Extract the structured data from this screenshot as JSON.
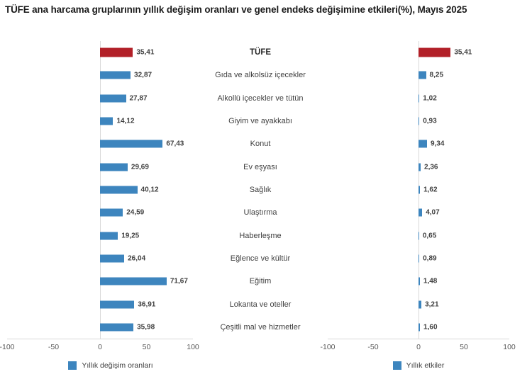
{
  "colors": {
    "bar_blue": "#3d85be",
    "bar_red": "#b22028",
    "axis_line": "#d9d9d9"
  },
  "axis_ticks": [
    "-100",
    "-50",
    "0",
    "50",
    "100"
  ],
  "chart_data": {
    "type": "bar",
    "orientation": "horizontal",
    "title": "TÜFE ana harcama gruplarının yıllık değişim oranları ve genel endeks değişimine etkileri(%), Mayıs 2025",
    "categories": [
      "TÜFE",
      "Gıda ve alkolsüz içecekler",
      "Alkollü içecekler ve tütün",
      "Giyim ve ayakkabı",
      "Konut",
      "Ev eşyası",
      "Sağlık",
      "Ulaştırma",
      "Haberleşme",
      "Eğlence ve kültür",
      "Eğitim",
      "Lokanta ve oteller",
      "Çeşitli mal ve hizmetler"
    ],
    "series": [
      {
        "name": "Yıllık değişim oranları",
        "values": [
          35.41,
          32.87,
          27.87,
          14.12,
          67.43,
          29.69,
          40.12,
          24.59,
          19.25,
          26.04,
          71.67,
          36.91,
          35.98
        ]
      },
      {
        "name": "Yıllık etkiler",
        "values": [
          35.41,
          8.25,
          1.02,
          0.93,
          9.34,
          2.36,
          1.62,
          4.07,
          0.65,
          0.89,
          1.48,
          3.21,
          1.6
        ]
      }
    ],
    "xlim": [
      -100,
      100
    ],
    "xticks": [
      -100,
      -50,
      0,
      50,
      100
    ],
    "grid": false,
    "legend_position": "bottom",
    "highlight": "TÜFE row shown in red in both panels"
  },
  "rows": [
    {
      "label": "TÜFE",
      "rate_label": "35,41",
      "effect_label": "35,41",
      "total": true
    },
    {
      "label": "Gıda ve alkolsüz içecekler",
      "rate_label": "32,87",
      "effect_label": "8,25"
    },
    {
      "label": "Alkollü içecekler ve tütün",
      "rate_label": "27,87",
      "effect_label": "1,02"
    },
    {
      "label": "Giyim ve ayakkabı",
      "rate_label": "14,12",
      "effect_label": "0,93"
    },
    {
      "label": "Konut",
      "rate_label": "67,43",
      "effect_label": "9,34"
    },
    {
      "label": "Ev eşyası",
      "rate_label": "29,69",
      "effect_label": "2,36"
    },
    {
      "label": "Sağlık",
      "rate_label": "40,12",
      "effect_label": "1,62"
    },
    {
      "label": "Ulaştırma",
      "rate_label": "24,59",
      "effect_label": "4,07"
    },
    {
      "label": "Haberleşme",
      "rate_label": "19,25",
      "effect_label": "0,65"
    },
    {
      "label": "Eğlence ve kültür",
      "rate_label": "26,04",
      "effect_label": "0,89"
    },
    {
      "label": "Eğitim",
      "rate_label": "71,67",
      "effect_label": "1,48"
    },
    {
      "label": "Lokanta ve oteller",
      "rate_label": "36,91",
      "effect_label": "3,21"
    },
    {
      "label": "Çeşitli mal ve hizmetler",
      "rate_label": "35,98",
      "effect_label": "1,60"
    }
  ]
}
